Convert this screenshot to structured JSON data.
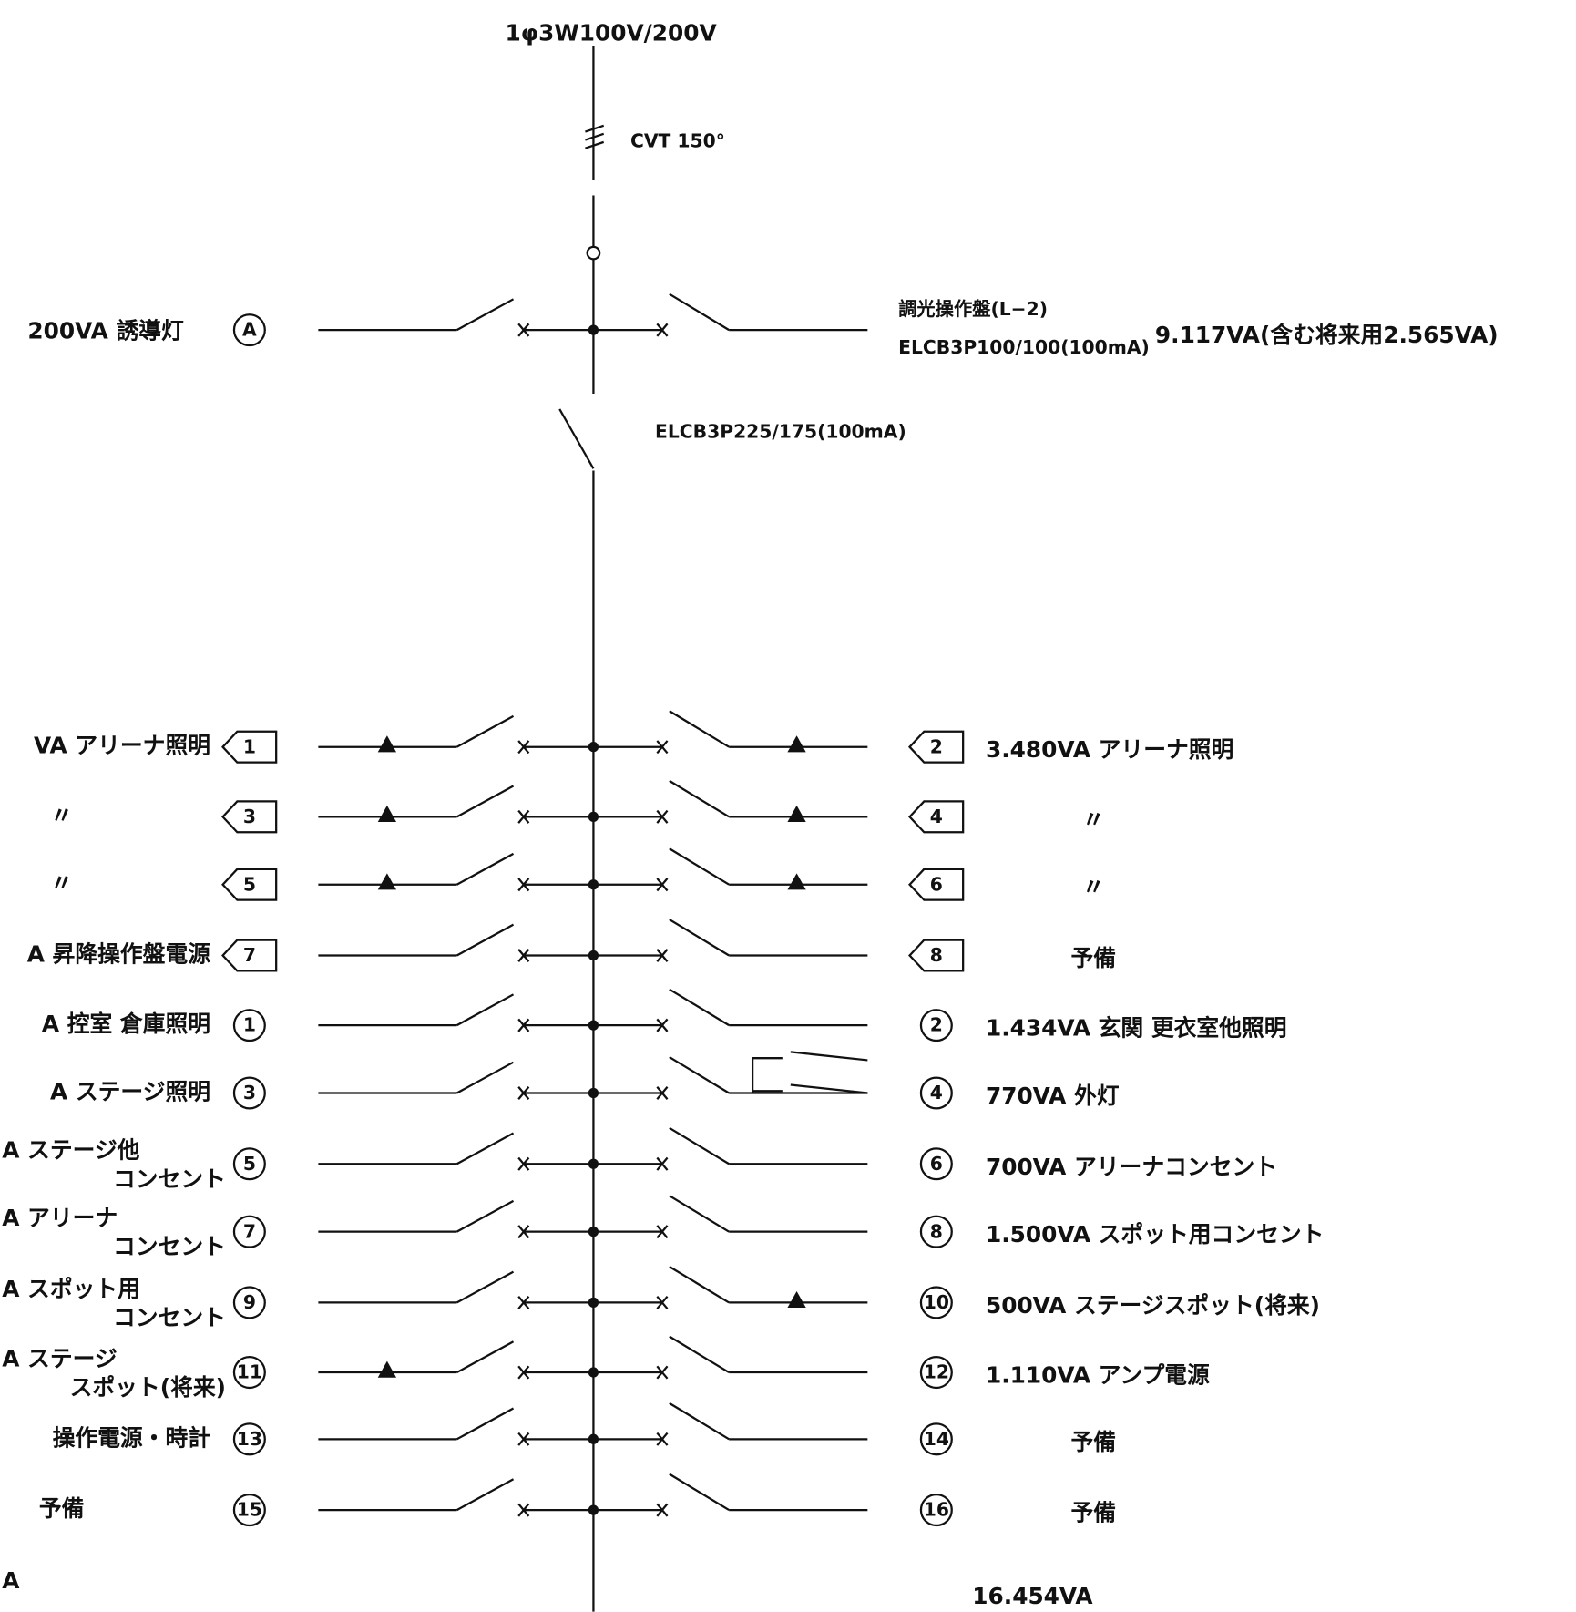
{
  "header": {
    "supply": "1φ3W100V/200V",
    "cable": "CVT 150°",
    "main_breaker": "ELCB3P225/175(100mA)"
  },
  "top_branch": {
    "left_label": "200VA 誘導灯",
    "left_no": "A",
    "right_label": "調光操作盤(L−2)",
    "right_breaker": "ELCB3P100/100(100mA)",
    "right_load": "9.117VA(含む将来用2.565VA)"
  },
  "rows": [
    {
      "left_label": [
        "VA アリーナ照明"
      ],
      "left_no": "1",
      "right_no": "2",
      "right_label": "3.480VA アリーナ照明"
    },
    {
      "left_label": [
        "〃"
      ],
      "left_no": "3",
      "right_no": "4",
      "right_label": "〃"
    },
    {
      "left_label": [
        "〃"
      ],
      "left_no": "5",
      "right_no": "6",
      "right_label": "〃"
    },
    {
      "left_label": [
        "A 昇降操作盤電源"
      ],
      "left_no": "7",
      "right_no": "8",
      "right_label": "予備"
    },
    {
      "left_label": [
        "A 控室 倉庫照明"
      ],
      "left_no": "1",
      "right_no": "2",
      "right_label": "1.434VA 玄関 更衣室他照明"
    },
    {
      "left_label": [
        "A ステージ照明"
      ],
      "left_no": "3",
      "right_no": "4",
      "right_label": "770VA 外灯"
    },
    {
      "left_label": [
        "A ステージ他",
        "コンセント"
      ],
      "left_no": "5",
      "right_no": "6",
      "right_label": "700VA アリーナコンセント"
    },
    {
      "left_label": [
        "A アリーナ",
        "コンセント"
      ],
      "left_no": "7",
      "right_no": "8",
      "right_label": "1.500VA スポット用コンセント"
    },
    {
      "left_label": [
        "A スポット用",
        "コンセント"
      ],
      "left_no": "9",
      "right_no": "10",
      "right_label": "500VA ステージスポット(将来)"
    },
    {
      "left_label": [
        "A ステージ",
        "スポット(将来)"
      ],
      "left_no": "11",
      "right_no": "12",
      "right_label": "1.110VA アンプ電源"
    },
    {
      "left_label": [
        "操作電源・時計"
      ],
      "left_no": "13",
      "right_no": "14",
      "right_label": "予備"
    },
    {
      "left_label": [
        "予備"
      ],
      "left_no": "15",
      "right_no": "16",
      "right_label": "予備"
    }
  ],
  "footer": {
    "left": "A",
    "total": "16.454VA"
  }
}
